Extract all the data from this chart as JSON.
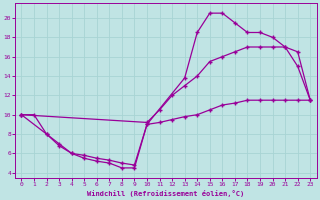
{
  "xlabel": "Windchill (Refroidissement éolien,°C)",
  "bg_color": "#c0e4e4",
  "line_color": "#990099",
  "grid_color": "#b0d8d8",
  "xmin": -0.5,
  "xmax": 23.5,
  "ymin": 3.5,
  "ymax": 21.5,
  "line1_x": [
    0,
    1,
    2,
    3,
    4,
    5,
    6,
    7,
    8,
    9,
    10,
    13,
    14,
    15,
    16,
    17,
    18,
    19,
    20,
    21,
    22,
    23
  ],
  "line1_y": [
    10,
    10,
    8,
    7,
    6,
    5.5,
    5.2,
    5,
    4.5,
    4.5,
    9,
    13.8,
    18.5,
    20.5,
    20.5,
    19.5,
    18.5,
    18.5,
    18,
    17,
    15,
    11.5
  ],
  "line2_x": [
    0,
    10,
    11,
    12,
    13,
    14,
    15,
    16,
    17,
    18,
    19,
    20,
    21,
    22,
    23
  ],
  "line2_y": [
    10,
    9.2,
    10.5,
    12,
    13,
    14,
    15.5,
    16,
    16.5,
    17,
    17,
    17,
    17,
    16.5,
    11.5
  ],
  "line3_x": [
    0,
    2,
    3,
    4,
    5,
    6,
    7,
    8,
    9,
    10,
    11,
    12,
    13,
    14,
    15,
    16,
    17,
    18,
    19,
    20,
    21,
    22,
    23
  ],
  "line3_y": [
    10,
    8.0,
    6.8,
    6.0,
    5.8,
    5.5,
    5.3,
    5.0,
    4.8,
    9.0,
    9.2,
    9.5,
    9.8,
    10.0,
    10.5,
    11.0,
    11.2,
    11.5,
    11.5,
    11.5,
    11.5,
    11.5,
    11.5
  ],
  "xticks": [
    0,
    1,
    2,
    3,
    4,
    5,
    6,
    7,
    8,
    9,
    10,
    11,
    12,
    13,
    14,
    15,
    16,
    17,
    18,
    19,
    20,
    21,
    22,
    23
  ],
  "yticks": [
    4,
    6,
    8,
    10,
    12,
    14,
    16,
    18,
    20
  ]
}
